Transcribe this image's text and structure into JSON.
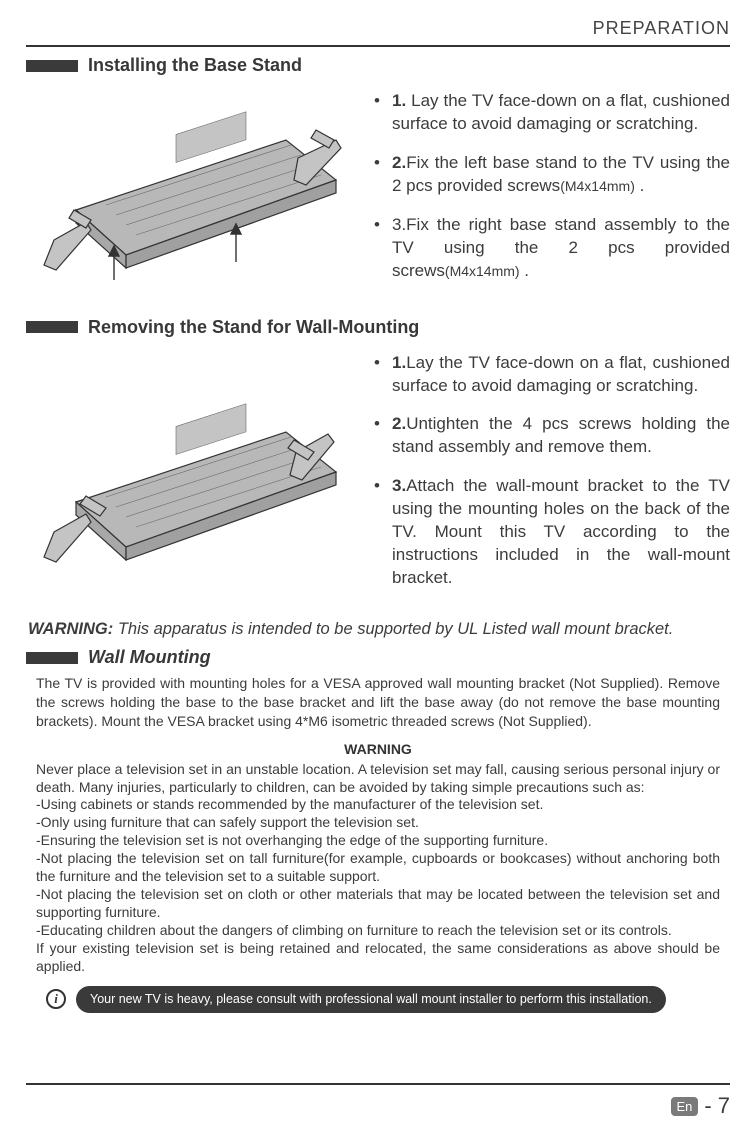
{
  "header": {
    "category": "PREPARATION"
  },
  "sections": {
    "install": {
      "title": "Installing the Base Stand",
      "steps": [
        {
          "bullet": "•",
          "bold": "1. ",
          "text": "Lay the TV face-down on a flat, cushioned surface to avoid damaging or scratching."
        },
        {
          "bullet": "•",
          "bold": "2.",
          "text": "Fix the left base stand to  the TV using the 2 pcs provided screws",
          "small": "(M4x14mm)",
          "tail": "  ."
        },
        {
          "bullet": "•",
          "bold": "",
          "text": "3.Fix the right base stand assembly to the TV using the 2 pcs provided screws",
          "small": "(M4x14mm)",
          "tail": "  ."
        }
      ]
    },
    "remove": {
      "title": "Removing the Stand for Wall-Mounting",
      "steps": [
        {
          "bullet": "•",
          "bold": "1.",
          "text": "Lay the TV face-down on a flat, cushioned surface to avoid damaging or scratching."
        },
        {
          "bullet": "•",
          "bold": "2.",
          "text": "Untighten the 4 pcs screws holding the stand assembly and remove them."
        },
        {
          "bullet": "•",
          "bold": "3.",
          "text": "Attach the wall-mount bracket to the TV using the mounting holes on the back of the TV. Mount this TV according to the instructions included in the wall-mount bracket."
        }
      ]
    },
    "warning_line": {
      "label": "WARNING:",
      "text": " This apparatus is intended to be supported by UL Listed wall mount bracket."
    },
    "wall_mount": {
      "title": "Wall Mounting",
      "para": "The TV is provided with mounting holes for a VESA approved wall mounting bracket (Not Supplied). Remove the screws holding the base to the base bracket and lift the base away (do not remove the base mounting brackets). Mount the VESA bracket using 4*M6 isometric threaded screws (Not Supplied).",
      "warn_title": "WARNING",
      "warn_body": "Never place a television set in an unstable location. A television set may fall, causing serious personal injury or death. Many injuries, particularly to children, can be avoided by taking simple precautions such as:\n-Using cabinets or stands recommended by the manufacturer of the television set.\n-Only using furniture that can safely support the television set.\n-Ensuring the television set is not overhanging the edge of the supporting furniture.\n-Not placing the television set on tall furniture(for example, cupboards or bookcases) without anchoring both the furniture and the television set to a suitable support.\n-Not placing the television set on cloth or other materials that may be located between the television set and supporting furniture.\n-Educating children about the dangers of climbing on furniture to reach the television set or its controls.\nIf your existing television set is being retained and relocated, the same considerations as above should be applied.",
      "pill": "Your new TV is heavy, please consult with professional wall mount installer to perform this installation."
    }
  },
  "footer": {
    "lang": "En",
    "sep": "-",
    "page": "7"
  },
  "figures": {
    "fill": "#b8b8b8",
    "stroke": "#333333",
    "arrow": "#333333"
  }
}
